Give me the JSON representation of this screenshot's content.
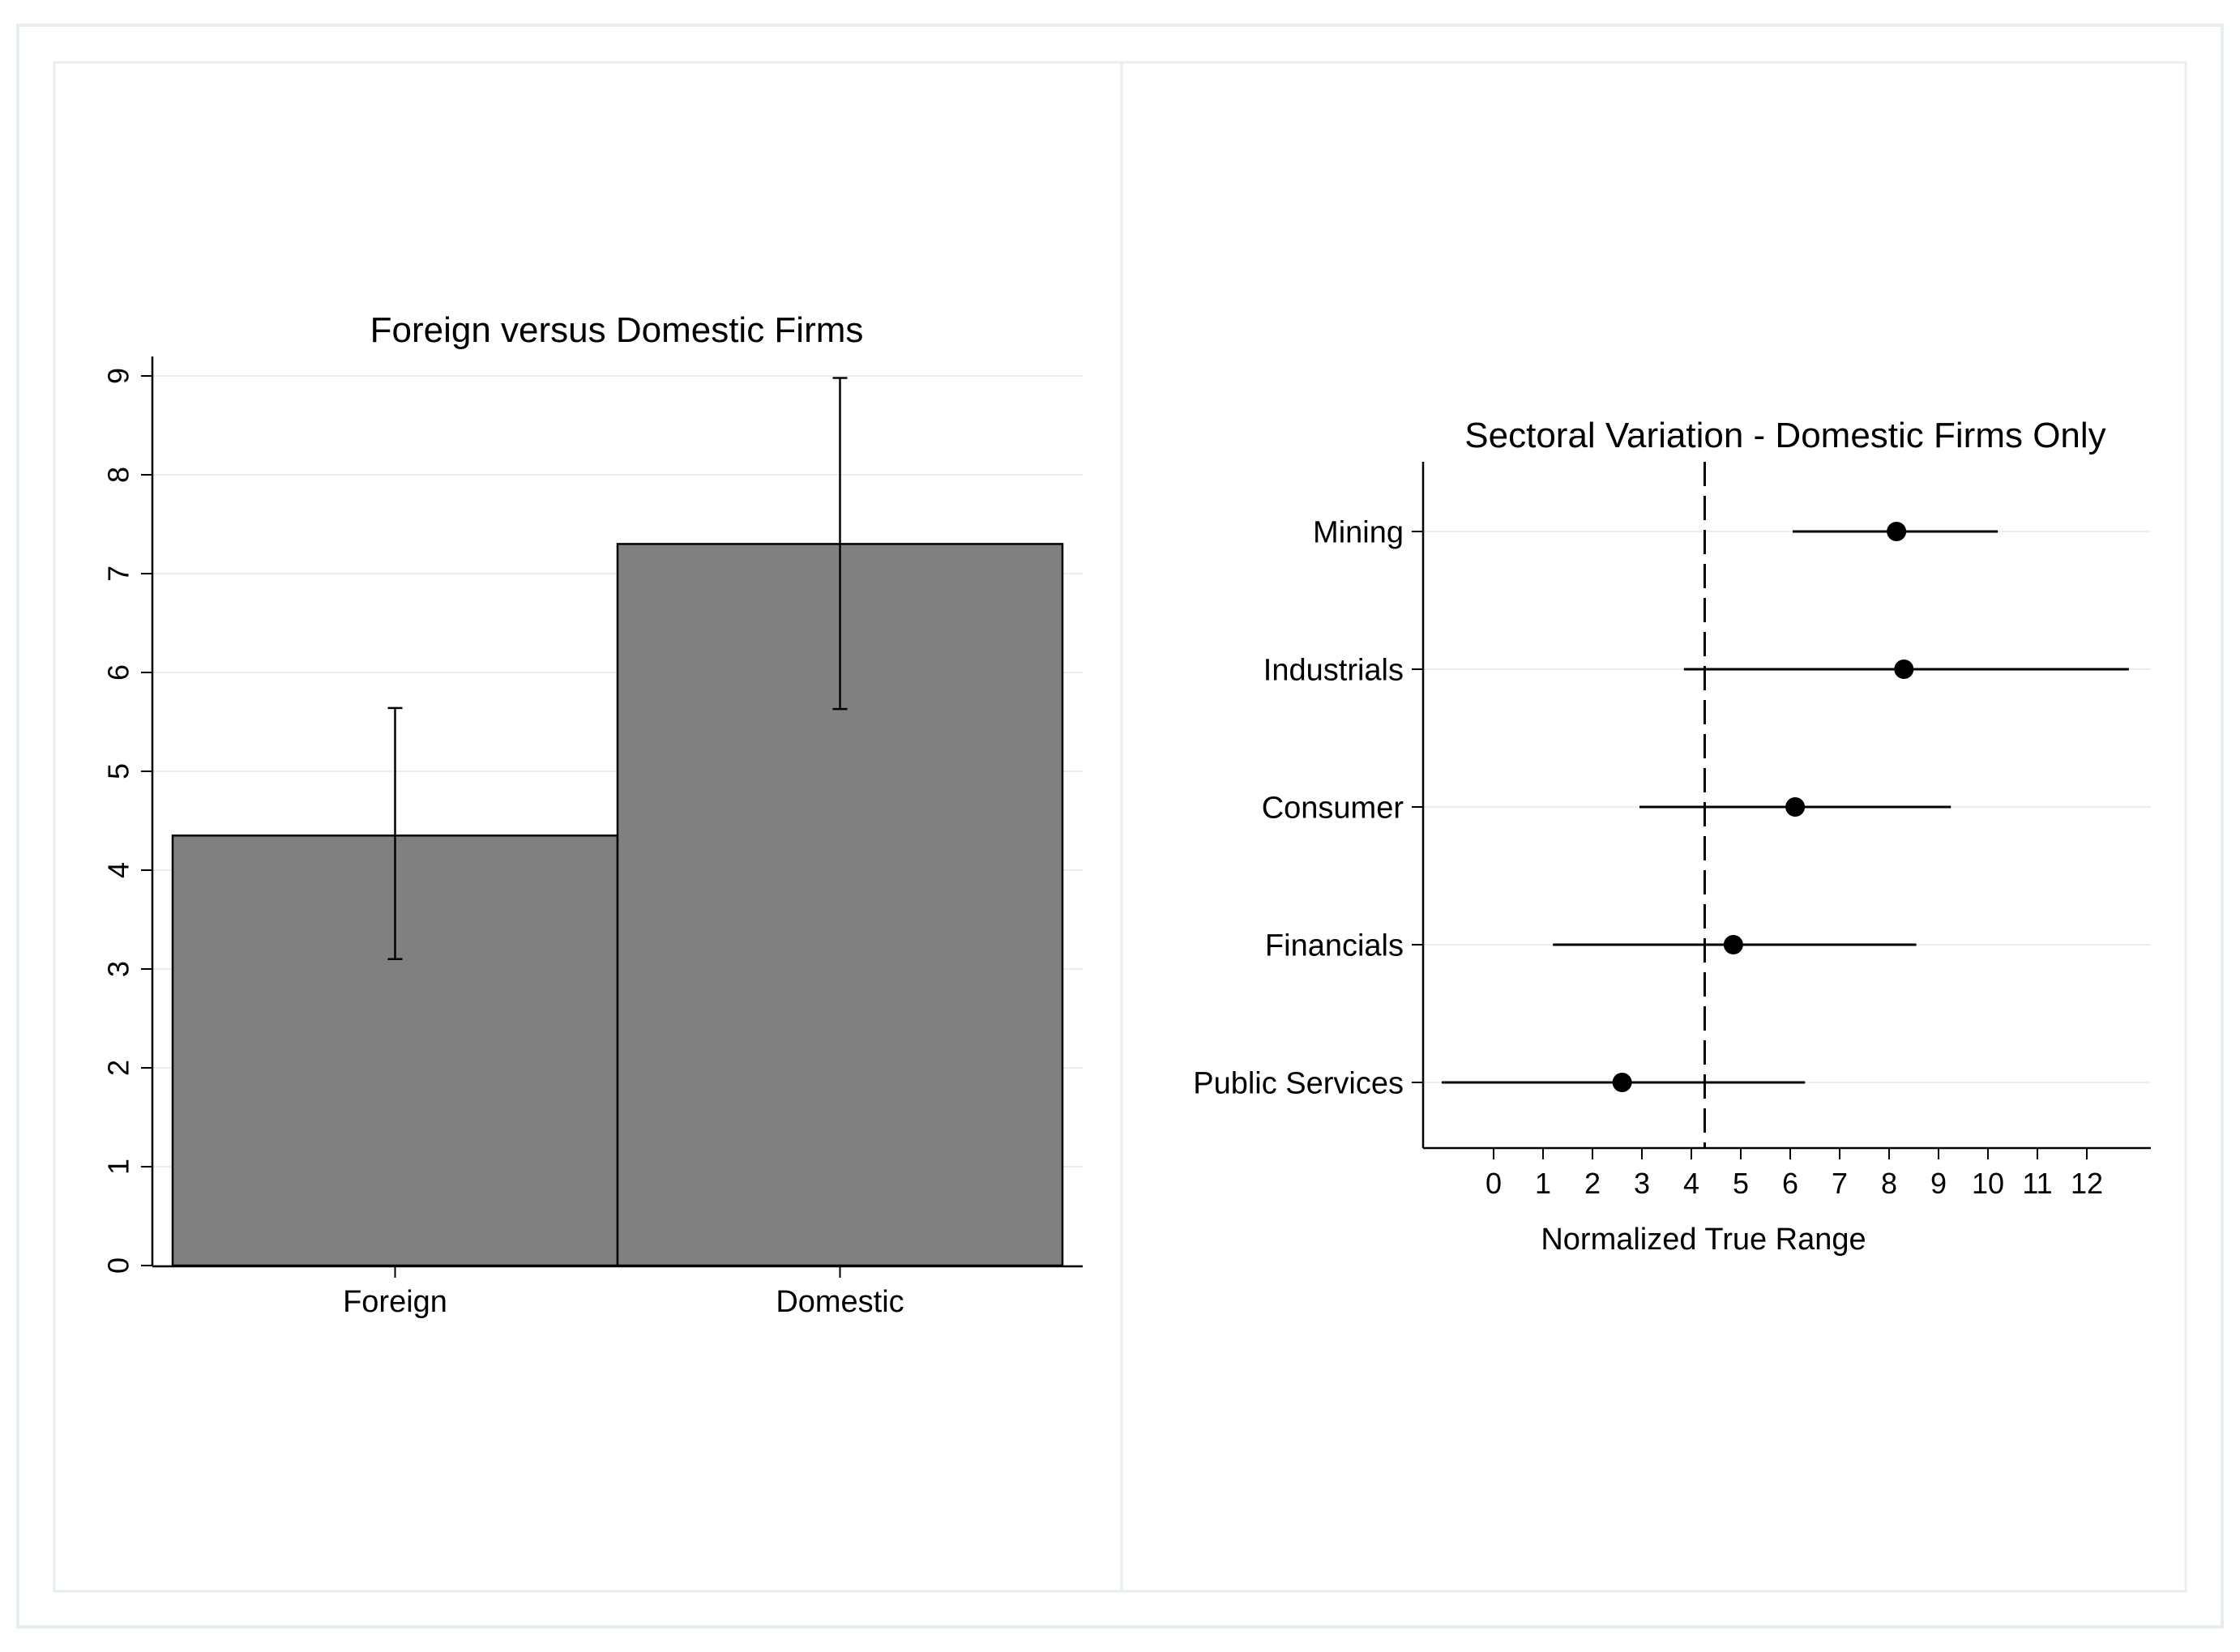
{
  "chart_data": [
    {
      "type": "bar",
      "title": "Foreign versus Domestic Firms",
      "xlabel": "",
      "ylabel": "",
      "categories": [
        "Foreign",
        "Domestic"
      ],
      "values": [
        4.35,
        7.3
      ],
      "error_low": [
        3.1,
        5.63
      ],
      "error_high": [
        5.64,
        8.98
      ],
      "ylim": [
        0,
        9
      ],
      "yticks": [
        "0",
        "1",
        "2",
        "3",
        "4",
        "5",
        "6",
        "7",
        "8",
        "9"
      ],
      "grid": true,
      "bar_color": "#808080"
    },
    {
      "type": "scatter",
      "title": "Sectoral Variation - Domestic Firms Only",
      "xlabel": "Normalized True Range",
      "ylabel": "",
      "categories": [
        "Mining",
        "Industrials",
        "Consumer",
        "Financials",
        "Public Services"
      ],
      "values": [
        8.15,
        8.3,
        6.1,
        4.85,
        2.6
      ],
      "ci_low": [
        6.05,
        3.85,
        2.95,
        1.2,
        -1.05
      ],
      "ci_high": [
        10.2,
        12.85,
        9.25,
        8.55,
        6.3
      ],
      "reference_line": 4.27,
      "xlim": [
        -1.5,
        13.2
      ],
      "xticks": [
        "0",
        "1",
        "2",
        "3",
        "4",
        "5",
        "6",
        "7",
        "8",
        "9",
        "10",
        "11",
        "12"
      ],
      "grid": true
    }
  ]
}
